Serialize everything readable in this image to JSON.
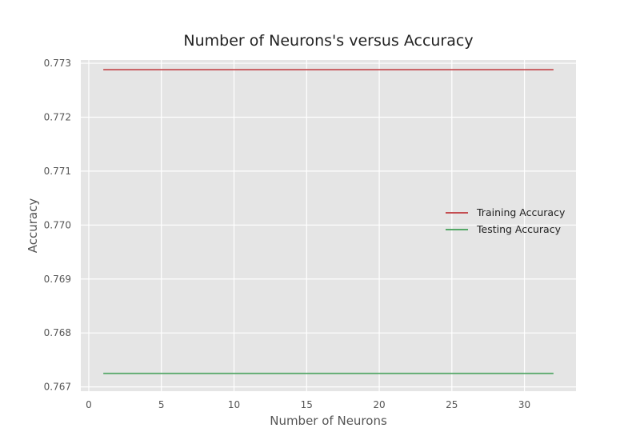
{
  "chart_data": {
    "type": "line",
    "title": "Number of Neurons's versus Accuracy",
    "xlabel": "Number of Neurons",
    "ylabel": "Accuracy",
    "xlim": [
      -0.55,
      33.55
    ],
    "ylim": [
      0.76692,
      0.77306
    ],
    "xticks": [
      0,
      5,
      10,
      15,
      20,
      25,
      30
    ],
    "yticks": [
      0.767,
      0.768,
      0.769,
      0.77,
      0.771,
      0.772,
      0.773
    ],
    "xtick_labels": [
      "0",
      "5",
      "10",
      "15",
      "20",
      "25",
      "30"
    ],
    "ytick_labels": [
      "0.767",
      "0.768",
      "0.769",
      "0.770",
      "0.771",
      "0.772",
      "0.773"
    ],
    "grid": true,
    "legend_position": "center-right",
    "series": [
      {
        "name": "Training Accuracy",
        "color": "#c44e52",
        "x": [
          1,
          32
        ],
        "y": [
          0.77288,
          0.77288
        ]
      },
      {
        "name": "Testing Accuracy",
        "color": "#55a868",
        "x": [
          1,
          32
        ],
        "y": [
          0.76725,
          0.76725
        ]
      }
    ]
  },
  "colors": {
    "plot_background": "#e5e5e5",
    "grid": "#ffffff"
  }
}
